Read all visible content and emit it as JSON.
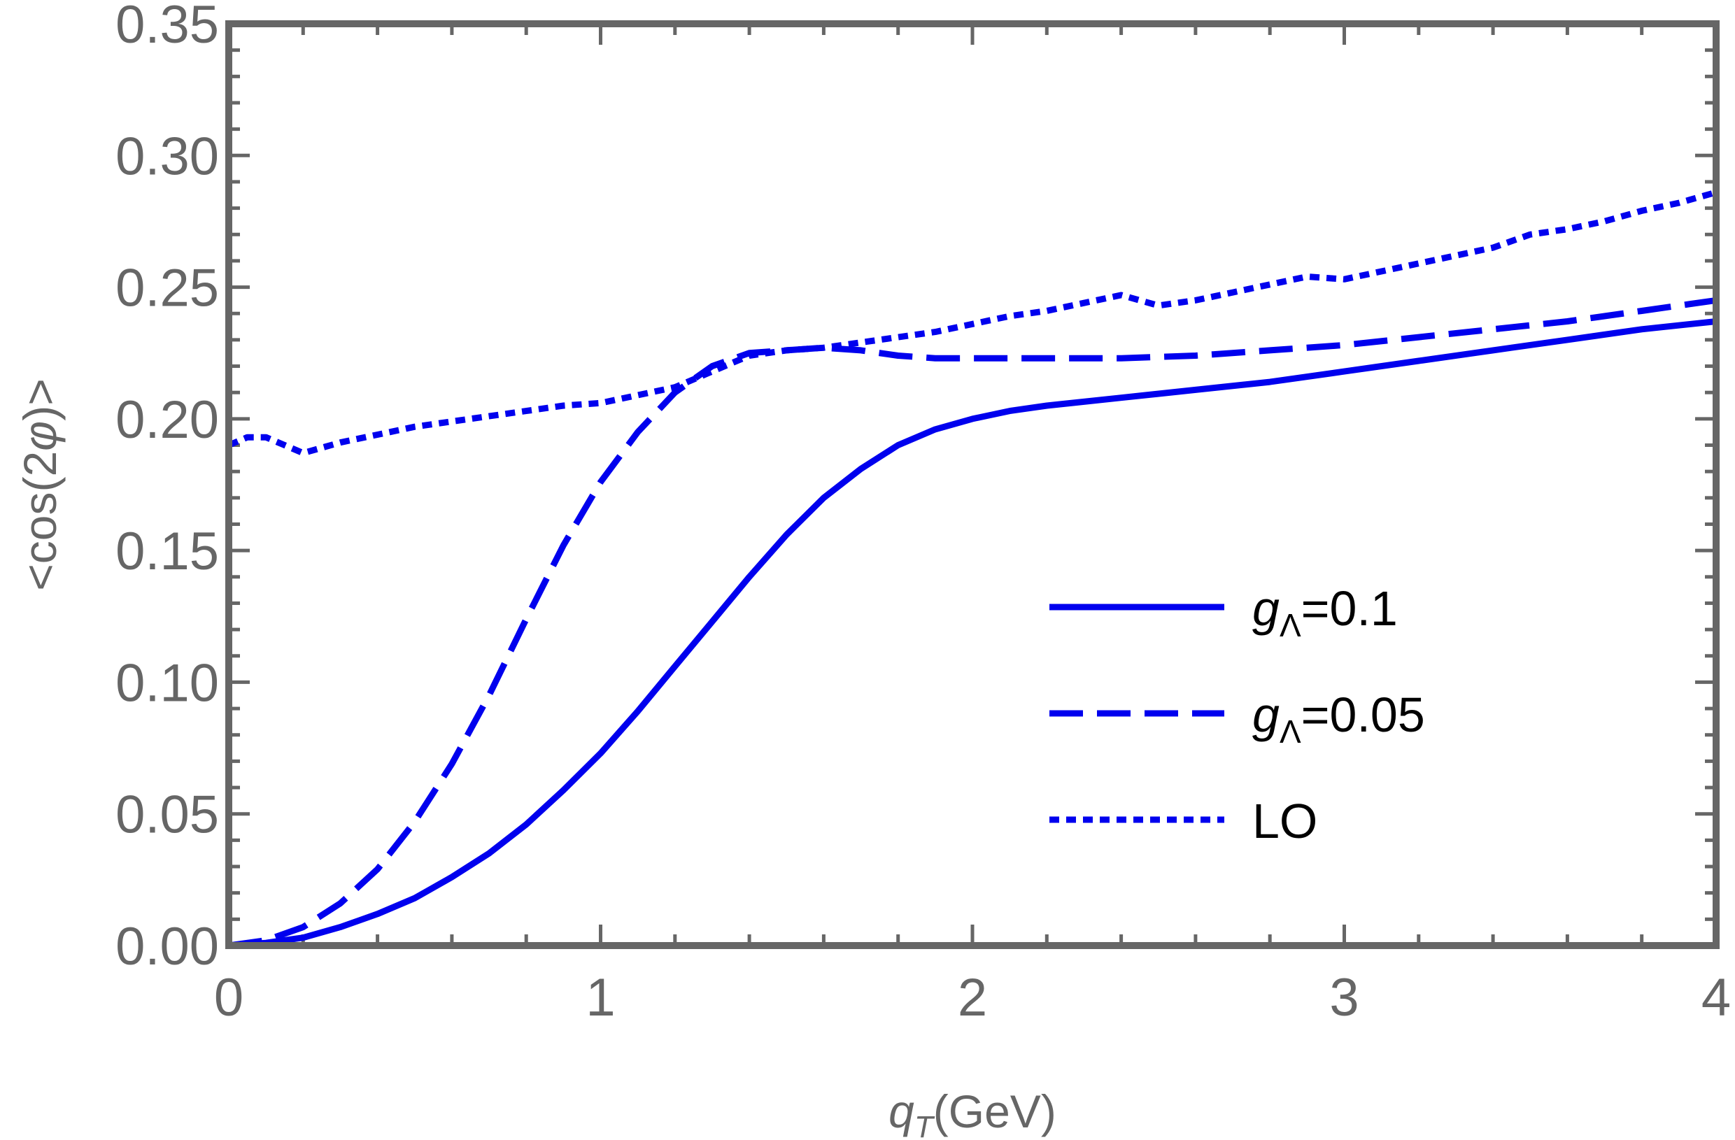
{
  "chart_data": {
    "type": "line",
    "title": "",
    "xlabel": "q_T(GeV)",
    "xlabel_parts": {
      "var": "q",
      "sub": "T",
      "rest": "(GeV)"
    },
    "ylabel": "<cos(2φ)>",
    "ylabel_parts": {
      "pre": "<cos(2",
      "var": "φ",
      "post": ")>"
    },
    "xlim": [
      0,
      4
    ],
    "ylim": [
      0,
      0.35
    ],
    "x_ticks": [
      0,
      1,
      2,
      3,
      4
    ],
    "x_tick_labels": [
      "0",
      "1",
      "2",
      "3",
      "4"
    ],
    "y_ticks": [
      0,
      0.05,
      0.1,
      0.15,
      0.2,
      0.25,
      0.3,
      0.35
    ],
    "y_tick_labels": [
      "0.00",
      "0.05",
      "0.10",
      "0.15",
      "0.20",
      "0.25",
      "0.30",
      "0.35"
    ],
    "grid": false,
    "legend_position": "bottom-right",
    "colors": {
      "series": "#0000ee",
      "frame": "#666666"
    },
    "series": [
      {
        "name": "gΛ=0.1",
        "legend": {
          "var": "g",
          "sub": "Λ",
          "rest": "=0.1"
        },
        "style": "solid",
        "x": [
          0,
          0.1,
          0.2,
          0.3,
          0.4,
          0.5,
          0.6,
          0.7,
          0.8,
          0.9,
          1.0,
          1.1,
          1.2,
          1.3,
          1.4,
          1.5,
          1.6,
          1.7,
          1.8,
          1.9,
          2.0,
          2.1,
          2.2,
          2.4,
          2.6,
          2.8,
          3.0,
          3.2,
          3.4,
          3.6,
          3.8,
          4.0
        ],
        "y": [
          0.0,
          0.001,
          0.003,
          0.007,
          0.012,
          0.018,
          0.026,
          0.035,
          0.046,
          0.059,
          0.073,
          0.089,
          0.106,
          0.123,
          0.14,
          0.156,
          0.17,
          0.181,
          0.19,
          0.196,
          0.2,
          0.203,
          0.205,
          0.208,
          0.211,
          0.214,
          0.218,
          0.222,
          0.226,
          0.23,
          0.234,
          0.237
        ]
      },
      {
        "name": "gΛ=0.05",
        "legend": {
          "var": "g",
          "sub": "Λ",
          "rest": "=0.05"
        },
        "style": "dashed",
        "x": [
          0,
          0.1,
          0.2,
          0.3,
          0.4,
          0.5,
          0.6,
          0.7,
          0.8,
          0.9,
          1.0,
          1.1,
          1.2,
          1.3,
          1.4,
          1.5,
          1.6,
          1.7,
          1.8,
          1.9,
          2.0,
          2.2,
          2.4,
          2.6,
          2.8,
          3.0,
          3.2,
          3.4,
          3.6,
          3.8,
          4.0
        ],
        "y": [
          0.0,
          0.002,
          0.007,
          0.016,
          0.029,
          0.047,
          0.069,
          0.095,
          0.124,
          0.152,
          0.176,
          0.195,
          0.21,
          0.22,
          0.225,
          0.226,
          0.227,
          0.226,
          0.224,
          0.223,
          0.223,
          0.223,
          0.223,
          0.224,
          0.226,
          0.228,
          0.231,
          0.234,
          0.237,
          0.241,
          0.245
        ]
      },
      {
        "name": "LO",
        "legend": {
          "var": "",
          "sub": "",
          "rest": "LO"
        },
        "style": "dotted",
        "x": [
          0,
          0.05,
          0.1,
          0.2,
          0.3,
          0.4,
          0.5,
          0.6,
          0.7,
          0.8,
          0.9,
          1.0,
          1.1,
          1.2,
          1.3,
          1.4,
          1.5,
          1.6,
          1.7,
          1.8,
          1.9,
          2.0,
          2.1,
          2.2,
          2.3,
          2.4,
          2.5,
          2.6,
          2.7,
          2.8,
          2.9,
          3.0,
          3.1,
          3.2,
          3.3,
          3.4,
          3.5,
          3.6,
          3.7,
          3.8,
          3.9,
          4.0
        ],
        "y": [
          0.19,
          0.193,
          0.193,
          0.187,
          0.191,
          0.194,
          0.197,
          0.199,
          0.201,
          0.203,
          0.205,
          0.206,
          0.209,
          0.212,
          0.218,
          0.224,
          0.226,
          0.227,
          0.229,
          0.231,
          0.233,
          0.236,
          0.239,
          0.241,
          0.244,
          0.247,
          0.243,
          0.245,
          0.248,
          0.251,
          0.254,
          0.253,
          0.256,
          0.259,
          0.262,
          0.265,
          0.27,
          0.272,
          0.275,
          0.279,
          0.282,
          0.286
        ]
      }
    ]
  }
}
